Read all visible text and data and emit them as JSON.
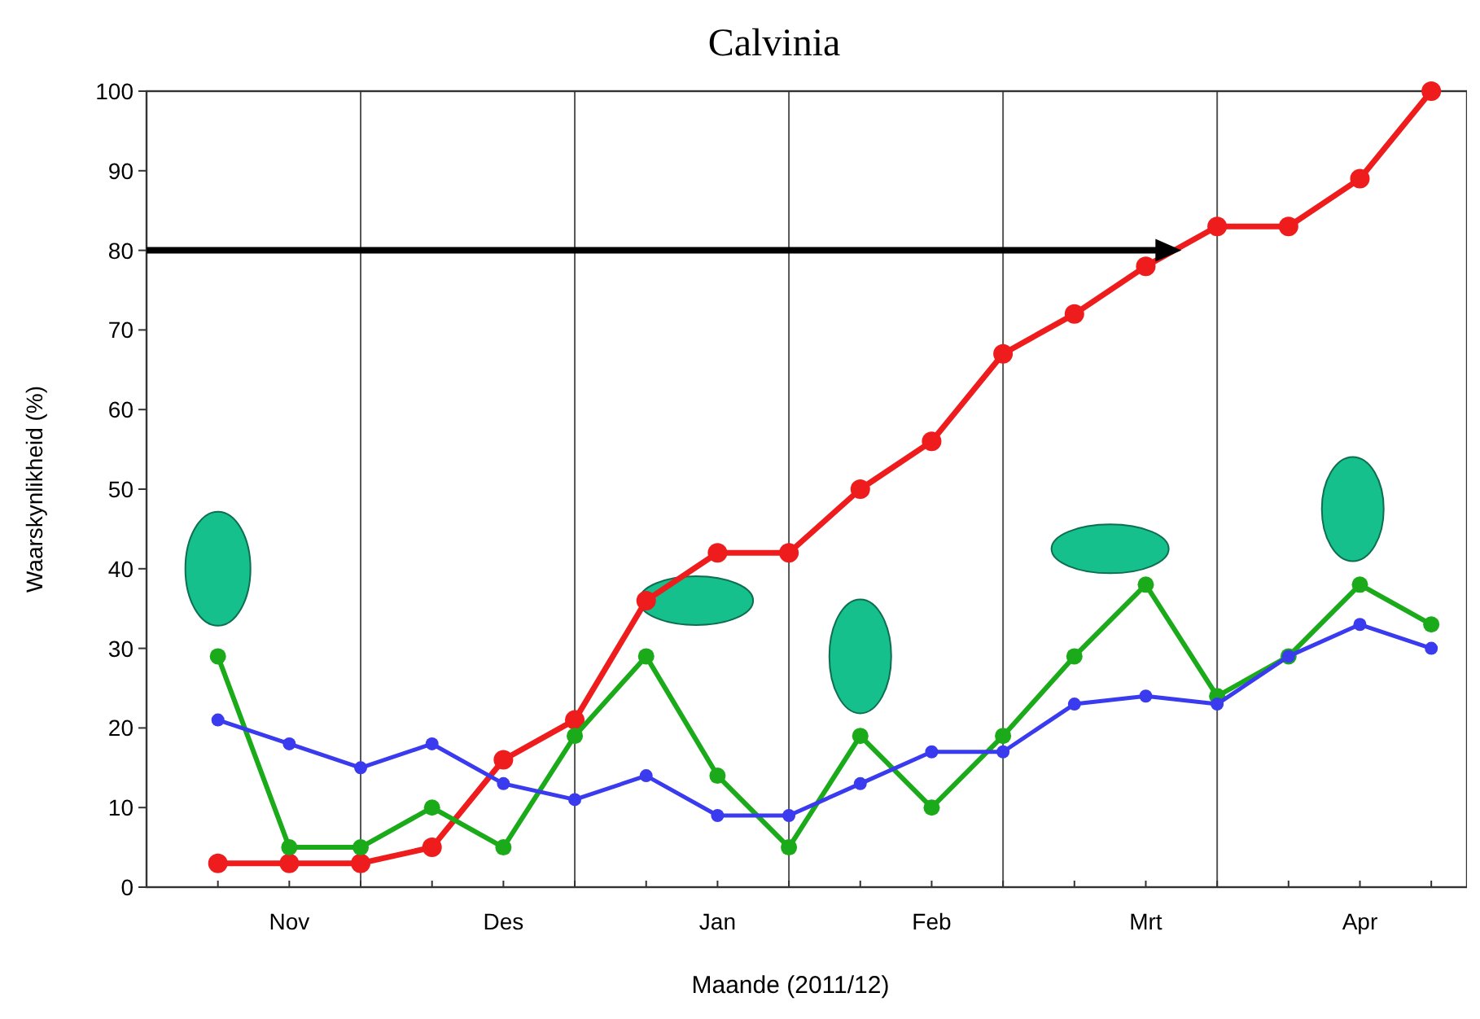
{
  "chart_data": {
    "type": "line",
    "title": "Calvinia",
    "xlabel": "Maande (2011/12)",
    "ylabel": "Waarskynlikheid (%)",
    "categories": [
      null,
      "Nov",
      null,
      null,
      "Des",
      null,
      null,
      "Jan",
      null,
      null,
      "Feb",
      null,
      null,
      "Mrt",
      null,
      null,
      "Apr",
      null
    ],
    "ylim": [
      0,
      100
    ],
    "yticks": [
      0,
      10,
      20,
      30,
      40,
      50,
      60,
      70,
      80,
      90,
      100
    ],
    "series": [
      {
        "color": "#ee1c1c",
        "values": [
          3,
          3,
          3,
          5,
          16,
          21,
          36,
          42,
          42,
          50,
          56,
          67,
          72,
          78,
          83,
          83,
          89,
          100
        ]
      },
      {
        "color": "#1aaa1a",
        "values": [
          29,
          5,
          5,
          10,
          5,
          19,
          29,
          14,
          5,
          19,
          10,
          19,
          29,
          38,
          24,
          29,
          38,
          33
        ]
      },
      {
        "color": "#3a3aee",
        "values": [
          21,
          18,
          15,
          18,
          13,
          11,
          14,
          9,
          9,
          13,
          17,
          17,
          23,
          24,
          23,
          29,
          33,
          30
        ]
      }
    ],
    "marker": "circle",
    "line_style": "solid",
    "grid": "x"
  }
}
